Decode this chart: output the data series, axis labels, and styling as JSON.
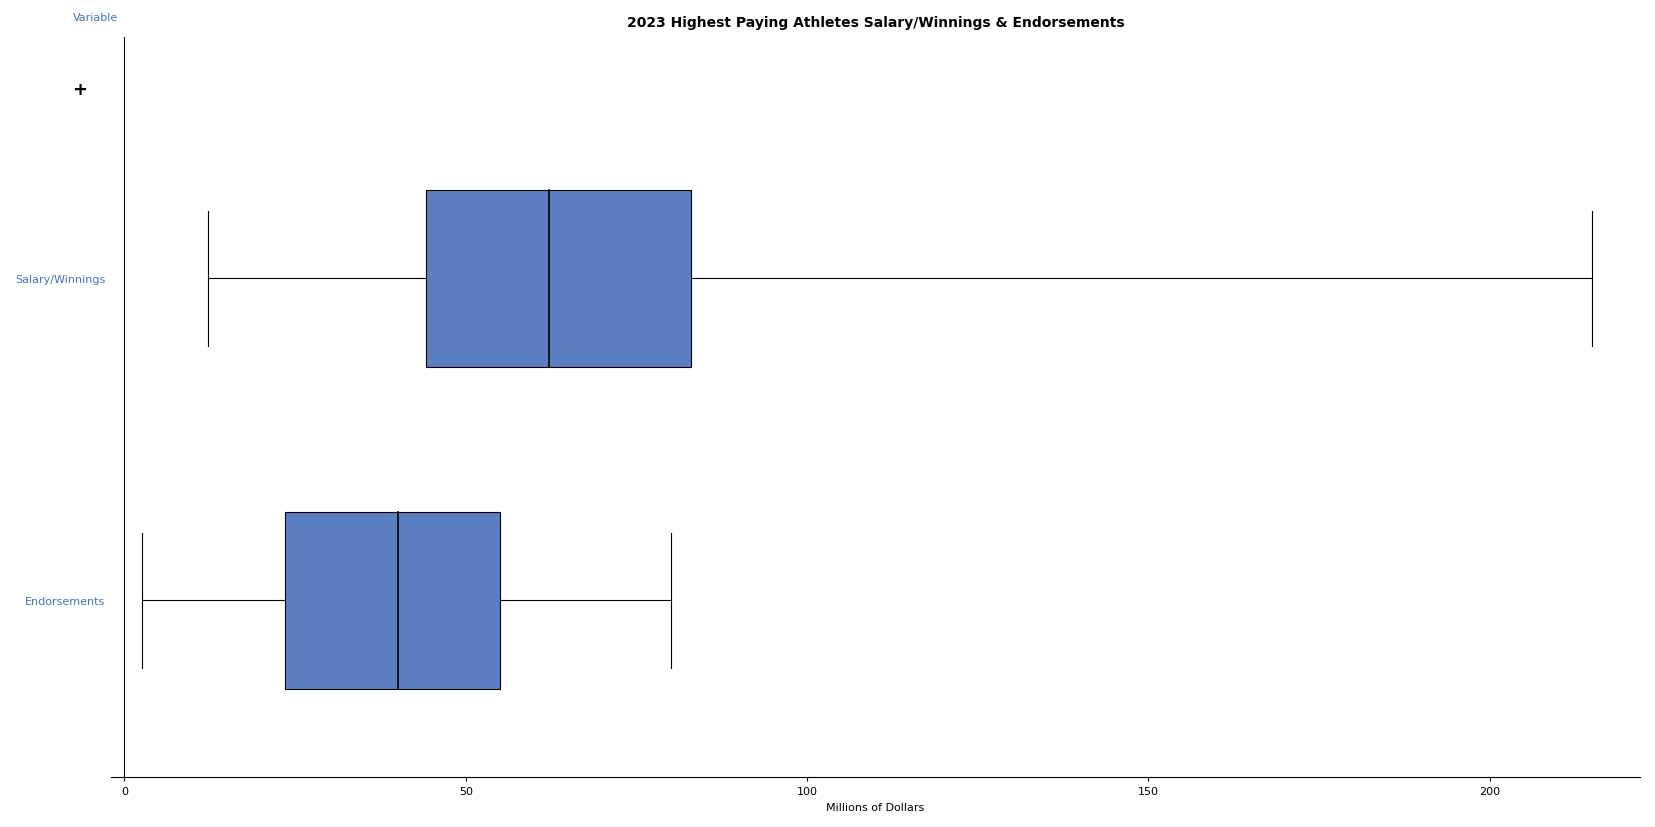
{
  "title": "2023 Highest Paying Athletes Salary/Winnings & Endorsements",
  "xlabel": "Millions of Dollars",
  "ylabel_top_label": "Variable",
  "series": [
    {
      "label": "Salary/Winnings",
      "min": 12.2,
      "q1": 44.15,
      "median": 62.15,
      "q3": 83.0,
      "max": 215.0
    },
    {
      "label": "Endorsements",
      "min": 2.5,
      "q1": 23.5,
      "median": 40.0,
      "q3": 55.0,
      "max": 80.0
    }
  ],
  "xlim": [
    -2,
    222
  ],
  "xticks": [
    0,
    50,
    100,
    150,
    200
  ],
  "box_color": "#5B7FC0",
  "median_color": "#000000",
  "whisker_color": "#000000",
  "box_width": 0.55,
  "title_fontsize": 10,
  "label_fontsize": 8,
  "tick_fontsize": 8,
  "ylabel_color": "#4472C4",
  "background_color": "#ffffff",
  "figsize": [
    16.55,
    8.28
  ],
  "dpi": 100
}
